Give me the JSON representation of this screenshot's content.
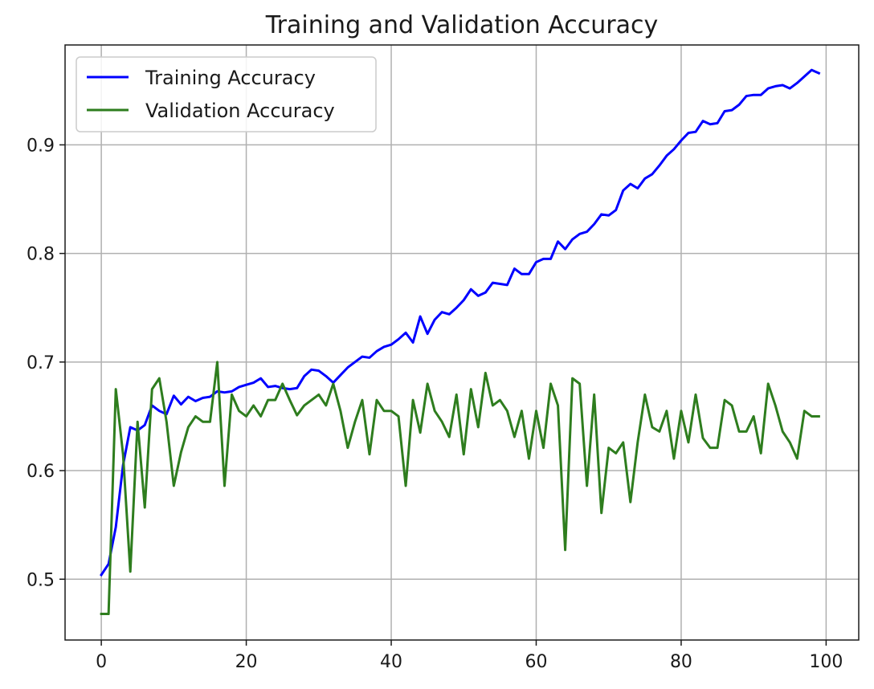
{
  "chart_data": {
    "type": "line",
    "title": "Training and Validation Accuracy",
    "xlabel": "",
    "ylabel": "",
    "xlim": [
      -5,
      104.5
    ],
    "ylim": [
      0.444,
      0.992
    ],
    "xticks": [
      0,
      20,
      40,
      60,
      80,
      100
    ],
    "yticks": [
      0.5,
      0.6,
      0.7,
      0.8,
      0.9
    ],
    "xtick_labels": [
      "0",
      "20",
      "40",
      "60",
      "80",
      "100"
    ],
    "ytick_labels": [
      "0.5",
      "0.6",
      "0.7",
      "0.8",
      "0.9"
    ],
    "grid": true,
    "legend_position": "top-left",
    "series": [
      {
        "name": "Training Accuracy",
        "color": "#0000ff",
        "values": [
          0.504,
          0.514,
          0.548,
          0.605,
          0.64,
          0.637,
          0.642,
          0.66,
          0.655,
          0.652,
          0.669,
          0.661,
          0.668,
          0.664,
          0.667,
          0.668,
          0.673,
          0.672,
          0.673,
          0.677,
          0.679,
          0.681,
          0.685,
          0.677,
          0.678,
          0.676,
          0.675,
          0.676,
          0.687,
          0.693,
          0.692,
          0.687,
          0.681,
          0.688,
          0.695,
          0.7,
          0.705,
          0.704,
          0.71,
          0.714,
          0.716,
          0.721,
          0.727,
          0.718,
          0.742,
          0.726,
          0.739,
          0.746,
          0.744,
          0.75,
          0.757,
          0.767,
          0.761,
          0.764,
          0.773,
          0.772,
          0.771,
          0.786,
          0.781,
          0.781,
          0.792,
          0.795,
          0.795,
          0.811,
          0.804,
          0.813,
          0.818,
          0.82,
          0.827,
          0.836,
          0.835,
          0.84,
          0.858,
          0.864,
          0.86,
          0.869,
          0.873,
          0.881,
          0.89,
          0.896,
          0.904,
          0.911,
          0.912,
          0.922,
          0.919,
          0.92,
          0.931,
          0.932,
          0.937,
          0.945,
          0.946,
          0.946,
          0.952,
          0.954,
          0.955,
          0.952,
          0.957,
          0.963,
          0.969,
          0.966
        ]
      },
      {
        "name": "Validation Accuracy",
        "color": "#2e7d1e",
        "values": [
          0.468,
          0.468,
          0.675,
          0.615,
          0.507,
          0.645,
          0.566,
          0.675,
          0.685,
          0.645,
          0.586,
          0.617,
          0.64,
          0.65,
          0.645,
          0.645,
          0.7,
          0.586,
          0.67,
          0.655,
          0.65,
          0.66,
          0.65,
          0.665,
          0.665,
          0.68,
          0.665,
          0.651,
          0.66,
          0.665,
          0.67,
          0.66,
          0.68,
          0.655,
          0.621,
          0.645,
          0.665,
          0.615,
          0.665,
          0.655,
          0.655,
          0.65,
          0.586,
          0.665,
          0.635,
          0.68,
          0.655,
          0.645,
          0.631,
          0.67,
          0.615,
          0.675,
          0.64,
          0.69,
          0.66,
          0.665,
          0.655,
          0.631,
          0.655,
          0.611,
          0.655,
          0.621,
          0.68,
          0.66,
          0.527,
          0.685,
          0.68,
          0.586,
          0.67,
          0.561,
          0.621,
          0.616,
          0.626,
          0.571,
          0.626,
          0.67,
          0.64,
          0.636,
          0.655,
          0.611,
          0.655,
          0.626,
          0.67,
          0.63,
          0.621,
          0.621,
          0.665,
          0.66,
          0.636,
          0.636,
          0.65,
          0.616,
          0.68,
          0.66,
          0.636,
          0.626,
          0.611,
          0.655,
          0.65,
          0.65
        ]
      }
    ]
  }
}
